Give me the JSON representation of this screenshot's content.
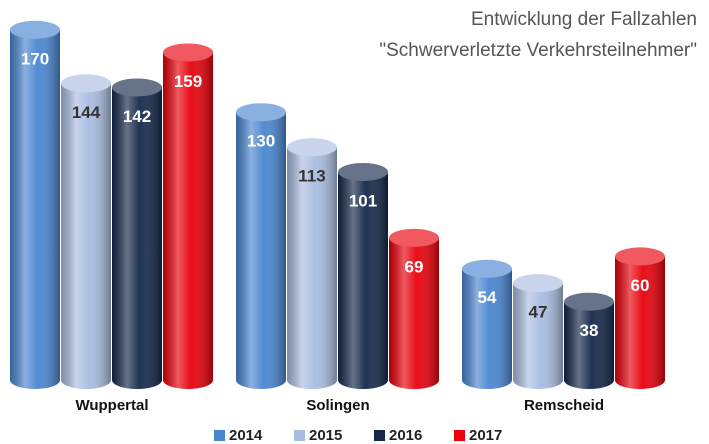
{
  "chart_data": {
    "type": "bar",
    "title": "Entwicklung der Fallzahlen",
    "subtitle": "\"Schwerverletzte Verkehrsteilnehmer\"",
    "categories": [
      "Wuppertal",
      "Solingen",
      "Remscheid"
    ],
    "series": [
      {
        "name": "2014",
        "color": "#4a86d0",
        "values": [
          170,
          130,
          54
        ]
      },
      {
        "name": "2015",
        "color": "#a9bde0",
        "values": [
          144,
          113,
          47
        ]
      },
      {
        "name": "2016",
        "color": "#15284a",
        "values": [
          142,
          101,
          38
        ]
      },
      {
        "name": "2017",
        "color": "#e8000b",
        "values": [
          159,
          69,
          60
        ]
      }
    ]
  }
}
